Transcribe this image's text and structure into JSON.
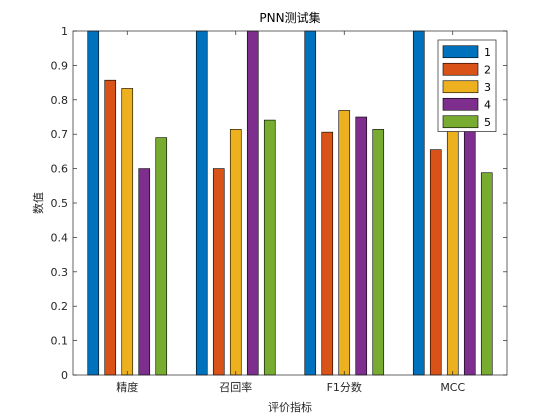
{
  "chart_data": {
    "type": "bar",
    "title": "PNN测试集",
    "xlabel": "评价指标",
    "ylabel": "数值",
    "categories": [
      "精度",
      "召回率",
      "F1分数",
      "MCC"
    ],
    "ylim": [
      0,
      1
    ],
    "yticks": [
      "0",
      "0.1",
      "0.2",
      "0.3",
      "0.4",
      "0.5",
      "0.6",
      "0.7",
      "0.8",
      "0.9",
      "1"
    ],
    "grid": false,
    "legend_position": "top-right",
    "series": [
      {
        "name": "1",
        "color": "#0072BD",
        "values": [
          1.0,
          1.0,
          1.0,
          1.0
        ]
      },
      {
        "name": "2",
        "color": "#D95319",
        "values": [
          0.857,
          0.6,
          0.706,
          0.655
        ]
      },
      {
        "name": "3",
        "color": "#EDB120",
        "values": [
          0.833,
          0.714,
          0.769,
          0.75
        ]
      },
      {
        "name": "4",
        "color": "#7E2F8E",
        "values": [
          0.6,
          1.0,
          0.75,
          0.75
        ]
      },
      {
        "name": "5",
        "color": "#77AC30",
        "values": [
          0.69,
          0.741,
          0.714,
          0.588
        ]
      }
    ]
  }
}
